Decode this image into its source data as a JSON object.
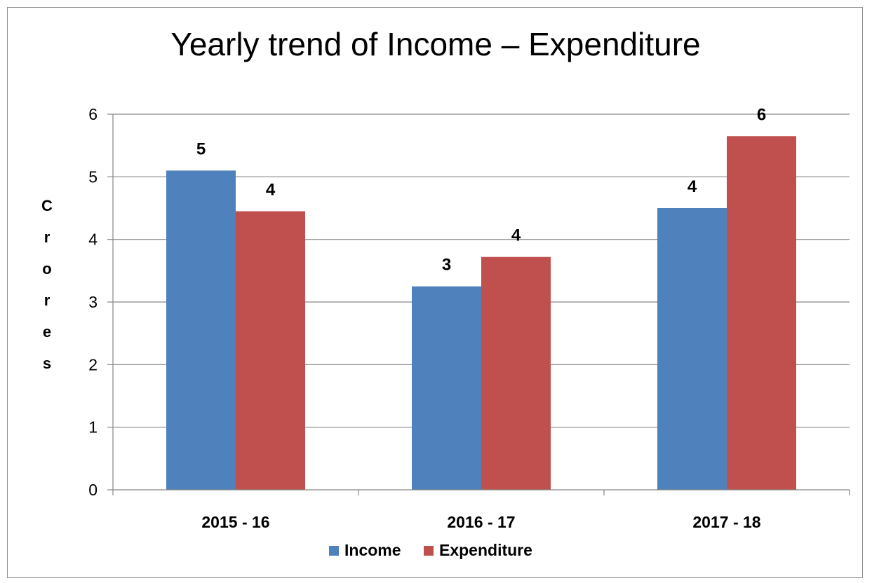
{
  "chart_data": {
    "type": "bar",
    "title": "Yearly trend of Income – Expenditure",
    "ylabel": "Crores",
    "xlabel": "",
    "ylim": [
      0,
      6
    ],
    "yticks": [
      0,
      1,
      2,
      3,
      4,
      5,
      6
    ],
    "grid": true,
    "legend": "bottom",
    "categories": [
      "2015 - 16",
      "2016 - 17",
      "2017 - 18"
    ],
    "series": [
      {
        "name": "Income",
        "color": "#4f81bd",
        "values": [
          5.1,
          3.25,
          4.5
        ],
        "labels": [
          "5",
          "3",
          "4"
        ]
      },
      {
        "name": "Expenditure",
        "color": "#c0504d",
        "values": [
          4.45,
          3.72,
          5.65
        ],
        "labels": [
          "4",
          "4",
          "6"
        ]
      }
    ]
  }
}
